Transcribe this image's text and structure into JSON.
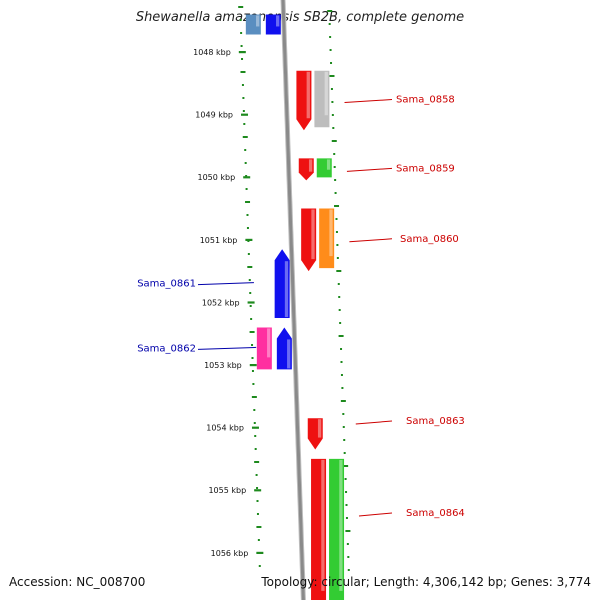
{
  "header": {
    "title": "Shewanella amazonensis SB2B, complete genome"
  },
  "footer": {
    "accession": "Accession: NC_008700",
    "stats": "Topology: circular; Length: 4,306,142 bp; Genes: 3,774"
  },
  "scale": {
    "unit": "kbp",
    "ticks": [
      "1048 kbp",
      "1049 kbp",
      "1050 kbp",
      "1051 kbp",
      "1052 kbp",
      "1053 kbp",
      "1054 kbp",
      "1055 kbp",
      "1056 kbp"
    ]
  },
  "colors": {
    "red": "#ee1111",
    "grey": "#bdbdbd",
    "green": "#33cc33",
    "orange": "#ff8c1a",
    "blue": "#1010ee",
    "pink": "#ff2fa0",
    "steel": "#5a8ec0",
    "dots": "#1e8a1e",
    "label_forward": "#cc0000",
    "label_reverse": "#0000aa",
    "axis": "#8a8a8a"
  },
  "genes": [
    {
      "id": "pre-blue",
      "color": "steel",
      "start": 1047.4,
      "end": 1047.72,
      "lane": "rev-out",
      "arrow": "none"
    },
    {
      "id": "pre-blue-2",
      "color": "blue",
      "start": 1047.4,
      "end": 1047.72,
      "lane": "rev-in",
      "arrow": "none"
    },
    {
      "id": "Sama_0858",
      "label": "Sama_0858",
      "strand": "+",
      "color": "red",
      "start": 1048.3,
      "end": 1049.25,
      "lane": "fwd-in",
      "arrow": "down",
      "cog_color": "grey"
    },
    {
      "id": "Sama_0859",
      "label": "Sama_0859",
      "strand": "+",
      "color": "red",
      "start": 1049.7,
      "end": 1050.05,
      "lane": "fwd-in",
      "arrow": "down",
      "cog_color": "green"
    },
    {
      "id": "Sama_0860",
      "label": "Sama_0860",
      "strand": "+",
      "color": "red",
      "start": 1050.5,
      "end": 1051.5,
      "lane": "fwd-in",
      "arrow": "down",
      "cog_color": "orange"
    },
    {
      "id": "Sama_0861",
      "label": "Sama_0861",
      "strand": "-",
      "color": "blue",
      "start": 1051.15,
      "end": 1052.25,
      "lane": "rev-in",
      "arrow": "up"
    },
    {
      "id": "Sama_0862",
      "label": "Sama_0862",
      "strand": "-",
      "color": "blue",
      "start": 1052.4,
      "end": 1053.07,
      "lane": "rev-in",
      "arrow": "up",
      "cog_color": "pink"
    },
    {
      "id": "Sama_0863",
      "label": "Sama_0863",
      "strand": "+",
      "color": "red",
      "start": 1053.85,
      "end": 1054.35,
      "lane": "fwd-in",
      "arrow": "down"
    },
    {
      "id": "Sama_0864",
      "label": "Sama_0864",
      "strand": "+",
      "color": "red",
      "start": 1054.5,
      "end": 1056.8,
      "lane": "fwd-in",
      "arrow": "none",
      "cog_color": "green"
    }
  ]
}
